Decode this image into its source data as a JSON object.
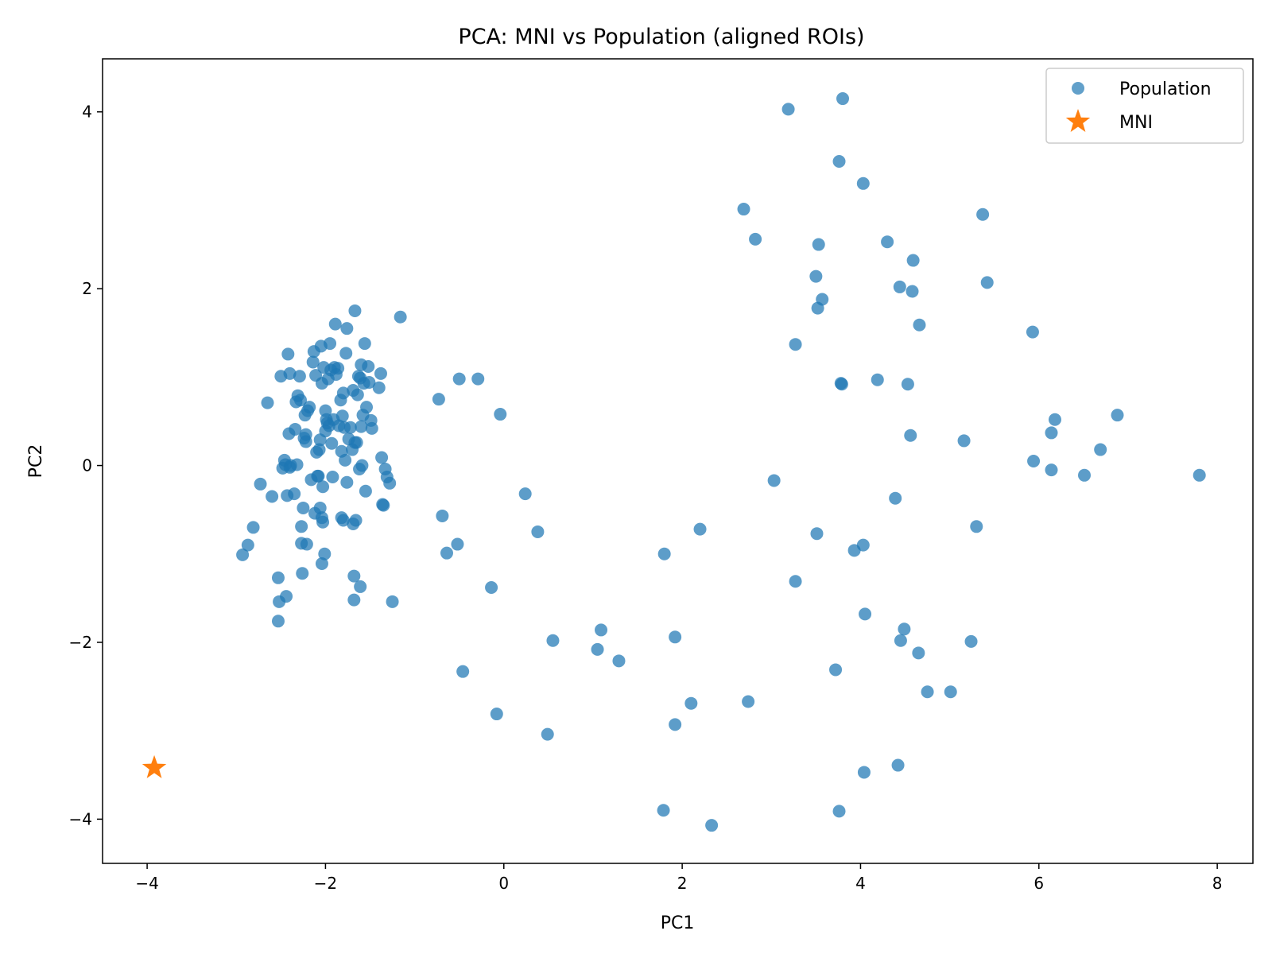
{
  "chart_data": {
    "type": "scatter",
    "title": "PCA: MNI vs Population (aligned ROIs)",
    "xlabel": "PC1",
    "ylabel": "PC2",
    "xlim": [
      -4.5,
      8.4
    ],
    "ylim": [
      -4.5,
      4.6
    ],
    "xticks": [
      -4,
      -2,
      0,
      2,
      4,
      6,
      8
    ],
    "yticks": [
      -4,
      -2,
      0,
      2,
      4
    ],
    "xtick_labels": [
      "−4",
      "−2",
      "0",
      "2",
      "4",
      "6",
      "8"
    ],
    "ytick_labels": [
      "−4",
      "−2",
      "0",
      "2",
      "4"
    ],
    "grid": false,
    "legend_position": "top-right",
    "series": [
      {
        "name": "Population",
        "marker": "circle",
        "color": "#1f77b4",
        "points": [
          [
            -2.93,
            -1.01
          ],
          [
            -2.87,
            -0.9
          ],
          [
            -2.81,
            -0.7
          ],
          [
            -2.73,
            -0.21
          ],
          [
            -2.65,
            0.71
          ],
          [
            -2.6,
            -0.35
          ],
          [
            -2.53,
            -1.27
          ],
          [
            -2.52,
            -1.54
          ],
          [
            -2.53,
            -1.76
          ],
          [
            -2.5,
            1.01
          ],
          [
            -2.48,
            -0.03
          ],
          [
            -2.46,
            0.06
          ],
          [
            -2.45,
            0.01
          ],
          [
            -2.44,
            -1.48
          ],
          [
            -2.43,
            -0.34
          ],
          [
            -2.42,
            1.26
          ],
          [
            -2.41,
            0.36
          ],
          [
            -2.4,
            1.04
          ],
          [
            -2.4,
            -0.02
          ],
          [
            -2.39,
            0.0
          ],
          [
            -2.35,
            -0.32
          ],
          [
            -2.34,
            0.41
          ],
          [
            -2.33,
            0.72
          ],
          [
            -2.32,
            0.01
          ],
          [
            -2.31,
            0.79
          ],
          [
            -2.29,
            1.01
          ],
          [
            -2.28,
            0.74
          ],
          [
            -2.27,
            -0.69
          ],
          [
            -2.27,
            -0.88
          ],
          [
            -2.26,
            -1.22
          ],
          [
            -2.25,
            -0.48
          ],
          [
            -2.24,
            0.31
          ],
          [
            -2.23,
            0.57
          ],
          [
            -2.22,
            0.35
          ],
          [
            -2.22,
            0.27
          ],
          [
            -2.21,
            -0.89
          ],
          [
            -2.2,
            0.62
          ],
          [
            -2.18,
            0.66
          ],
          [
            -2.16,
            -0.16
          ],
          [
            -2.14,
            1.17
          ],
          [
            -2.13,
            1.29
          ],
          [
            -2.12,
            -0.54
          ],
          [
            -2.11,
            1.02
          ],
          [
            -2.1,
            0.15
          ],
          [
            -2.09,
            -0.12
          ],
          [
            -2.08,
            -0.12
          ],
          [
            -2.07,
            0.18
          ],
          [
            -2.06,
            0.29
          ],
          [
            -2.06,
            -0.48
          ],
          [
            -2.05,
            1.35
          ],
          [
            -2.04,
            0.93
          ],
          [
            -2.04,
            -0.59
          ],
          [
            -2.04,
            -1.11
          ],
          [
            -2.03,
            -0.24
          ],
          [
            -2.03,
            -0.64
          ],
          [
            -2.02,
            1.11
          ],
          [
            -2.01,
            -1.0
          ],
          [
            -2.0,
            0.62
          ],
          [
            -2.0,
            0.39
          ],
          [
            -1.99,
            0.52
          ],
          [
            -1.98,
            0.48
          ],
          [
            -1.97,
            0.98
          ],
          [
            -1.96,
            0.45
          ],
          [
            -1.95,
            1.38
          ],
          [
            -1.94,
            1.08
          ],
          [
            -1.93,
            0.25
          ],
          [
            -1.92,
            -0.13
          ],
          [
            -1.91,
            0.52
          ],
          [
            -1.9,
            1.11
          ],
          [
            -1.89,
            1.6
          ],
          [
            -1.88,
            1.03
          ],
          [
            -1.86,
            1.1
          ],
          [
            -1.85,
            0.45
          ],
          [
            -1.83,
            0.74
          ],
          [
            -1.82,
            0.16
          ],
          [
            -1.82,
            -0.59
          ],
          [
            -1.81,
            0.56
          ],
          [
            -1.8,
            0.82
          ],
          [
            -1.8,
            -0.62
          ],
          [
            -1.79,
            0.43
          ],
          [
            -1.78,
            0.06
          ],
          [
            -1.77,
            1.27
          ],
          [
            -1.76,
            1.55
          ],
          [
            -1.76,
            -0.19
          ],
          [
            -1.74,
            0.3
          ],
          [
            -1.72,
            0.43
          ],
          [
            -1.7,
            0.18
          ],
          [
            -1.69,
            0.85
          ],
          [
            -1.69,
            -0.66
          ],
          [
            -1.68,
            -1.25
          ],
          [
            -1.68,
            -1.52
          ],
          [
            -1.67,
            1.75
          ],
          [
            -1.67,
            0.26
          ],
          [
            -1.66,
            -0.62
          ],
          [
            -1.65,
            0.26
          ],
          [
            -1.64,
            0.8
          ],
          [
            -1.63,
            1.01
          ],
          [
            -1.62,
            -0.04
          ],
          [
            -1.61,
            0.99
          ],
          [
            -1.61,
            -1.37
          ],
          [
            -1.6,
            0.44
          ],
          [
            -1.6,
            1.14
          ],
          [
            -1.59,
            0.0
          ],
          [
            -1.58,
            0.57
          ],
          [
            -1.57,
            0.93
          ],
          [
            -1.56,
            1.38
          ],
          [
            -1.55,
            -0.29
          ],
          [
            -1.54,
            0.66
          ],
          [
            -1.52,
            1.12
          ],
          [
            -1.51,
            0.94
          ],
          [
            -1.49,
            0.51
          ],
          [
            -1.48,
            0.42
          ],
          [
            -1.4,
            0.88
          ],
          [
            -1.38,
            1.04
          ],
          [
            -1.37,
            0.09
          ],
          [
            -1.36,
            -0.44
          ],
          [
            -1.35,
            -0.45
          ],
          [
            -1.33,
            -0.04
          ],
          [
            -1.31,
            -0.13
          ],
          [
            -1.28,
            -0.2
          ],
          [
            -1.25,
            -1.54
          ],
          [
            -1.16,
            1.68
          ],
          [
            -0.73,
            0.75
          ],
          [
            -0.69,
            -0.57
          ],
          [
            -0.64,
            -0.99
          ],
          [
            -0.52,
            -0.89
          ],
          [
            -0.5,
            0.98
          ],
          [
            -0.46,
            -2.33
          ],
          [
            -0.29,
            0.98
          ],
          [
            -0.14,
            -1.38
          ],
          [
            -0.08,
            -2.81
          ],
          [
            -0.04,
            0.58
          ],
          [
            0.24,
            -0.32
          ],
          [
            0.38,
            -0.75
          ],
          [
            0.49,
            -3.04
          ],
          [
            0.55,
            -1.98
          ],
          [
            1.05,
            -2.08
          ],
          [
            1.09,
            -1.86
          ],
          [
            1.29,
            -2.21
          ],
          [
            1.79,
            -3.9
          ],
          [
            1.8,
            -1.0
          ],
          [
            1.92,
            -1.94
          ],
          [
            1.92,
            -2.93
          ],
          [
            2.1,
            -2.69
          ],
          [
            2.2,
            -0.72
          ],
          [
            2.33,
            -4.07
          ],
          [
            2.69,
            2.9
          ],
          [
            2.74,
            -2.67
          ],
          [
            2.82,
            2.56
          ],
          [
            3.03,
            -0.17
          ],
          [
            3.19,
            4.03
          ],
          [
            3.27,
            1.37
          ],
          [
            3.27,
            -1.31
          ],
          [
            3.5,
            2.14
          ],
          [
            3.51,
            -0.77
          ],
          [
            3.52,
            1.78
          ],
          [
            3.53,
            2.5
          ],
          [
            3.57,
            1.88
          ],
          [
            3.72,
            -2.31
          ],
          [
            3.76,
            3.44
          ],
          [
            3.76,
            -3.91
          ],
          [
            3.78,
            0.93
          ],
          [
            3.79,
            0.92
          ],
          [
            3.8,
            4.15
          ],
          [
            3.93,
            -0.96
          ],
          [
            4.03,
            3.19
          ],
          [
            4.03,
            -0.9
          ],
          [
            4.04,
            -3.47
          ],
          [
            4.05,
            -1.68
          ],
          [
            4.19,
            0.97
          ],
          [
            4.3,
            2.53
          ],
          [
            4.39,
            -0.37
          ],
          [
            4.42,
            -3.39
          ],
          [
            4.44,
            2.02
          ],
          [
            4.45,
            -1.98
          ],
          [
            4.49,
            -1.85
          ],
          [
            4.53,
            0.92
          ],
          [
            4.56,
            0.34
          ],
          [
            4.58,
            1.97
          ],
          [
            4.59,
            2.32
          ],
          [
            4.65,
            -2.12
          ],
          [
            4.66,
            1.59
          ],
          [
            4.75,
            -2.56
          ],
          [
            5.01,
            -2.56
          ],
          [
            5.16,
            0.28
          ],
          [
            5.24,
            -1.99
          ],
          [
            5.3,
            -0.69
          ],
          [
            5.37,
            2.84
          ],
          [
            5.42,
            2.07
          ],
          [
            5.93,
            1.51
          ],
          [
            5.94,
            0.05
          ],
          [
            6.14,
            -0.05
          ],
          [
            6.14,
            0.37
          ],
          [
            6.18,
            0.52
          ],
          [
            6.51,
            -0.11
          ],
          [
            6.69,
            0.18
          ],
          [
            6.88,
            0.57
          ],
          [
            7.8,
            -0.11
          ]
        ]
      },
      {
        "name": "MNI",
        "marker": "star",
        "color": "#ff7f0e",
        "points": [
          [
            -3.92,
            -3.42
          ]
        ]
      }
    ]
  }
}
